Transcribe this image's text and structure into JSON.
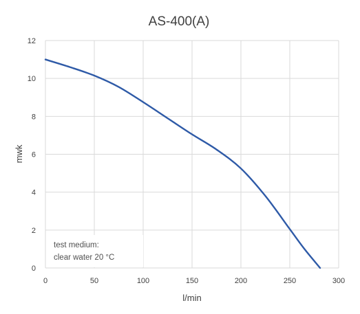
{
  "chart_data": {
    "type": "line",
    "title": "AS-400(A)",
    "xlabel": "l/min",
    "ylabel": "mwk",
    "xlim": [
      0,
      300
    ],
    "ylim": [
      0,
      12
    ],
    "x_ticks": [
      "0",
      "50",
      "100",
      "150",
      "200",
      "250",
      "300"
    ],
    "y_ticks": [
      "0",
      "2",
      "4",
      "6",
      "8",
      "10",
      "12"
    ],
    "grid": true,
    "annotation": [
      "test medium:",
      "clear water 20 °C"
    ],
    "series": [
      {
        "color": "#2e5aa7",
        "x": [
          0,
          25,
          50,
          75,
          100,
          125,
          150,
          175,
          200,
          225,
          250,
          265,
          281
        ],
        "y": [
          11.0,
          10.6,
          10.15,
          9.55,
          8.75,
          7.9,
          7.05,
          6.25,
          5.25,
          3.8,
          2.05,
          1.0,
          0.0
        ]
      }
    ]
  }
}
